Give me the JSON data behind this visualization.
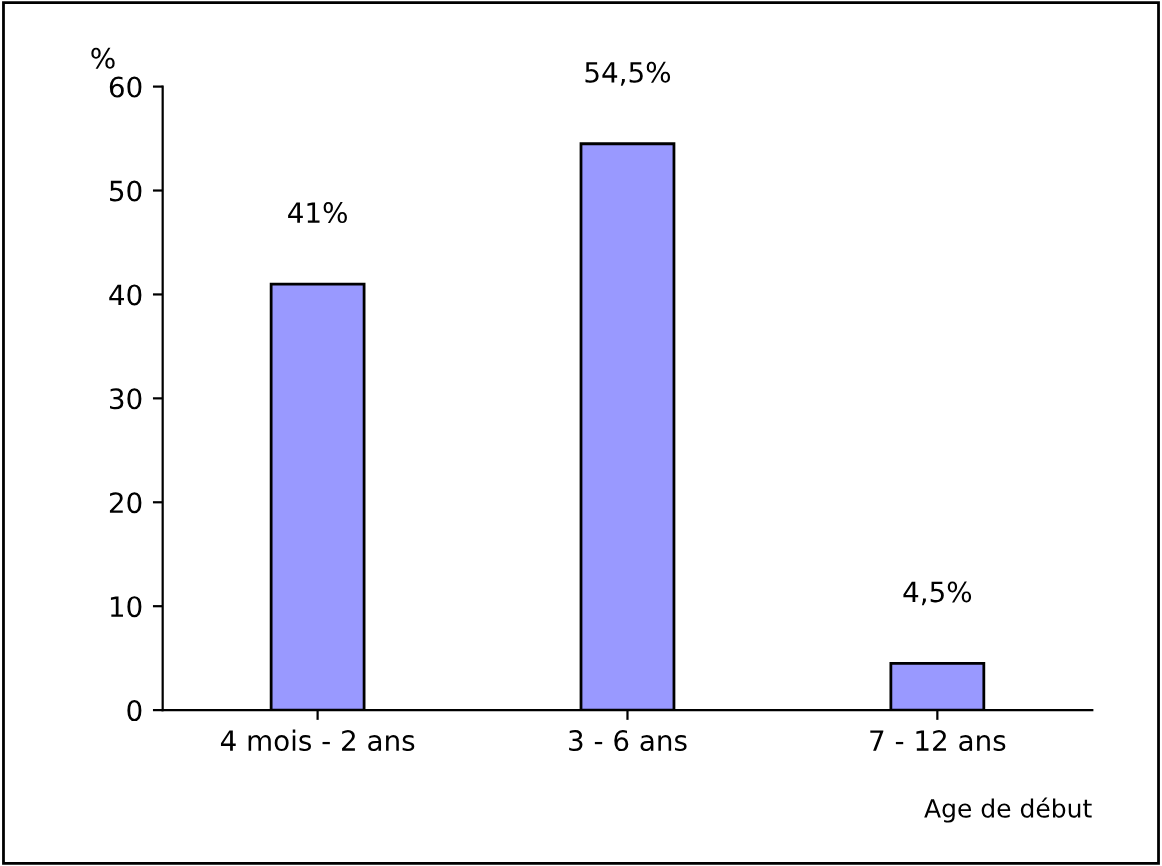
{
  "chart_data": {
    "type": "bar",
    "ylabel": "%",
    "xlabel": "Age de début",
    "categories": [
      "4 mois - 2 ans",
      "3 - 6 ans",
      "7 - 12 ans"
    ],
    "values": [
      41,
      54.5,
      4.5
    ],
    "value_labels": [
      "41%",
      "54,5%",
      "4,5%"
    ],
    "color": "#9999ff",
    "ylim": [
      0,
      60
    ],
    "yticks": [
      0,
      10,
      20,
      30,
      40,
      50,
      60
    ]
  }
}
